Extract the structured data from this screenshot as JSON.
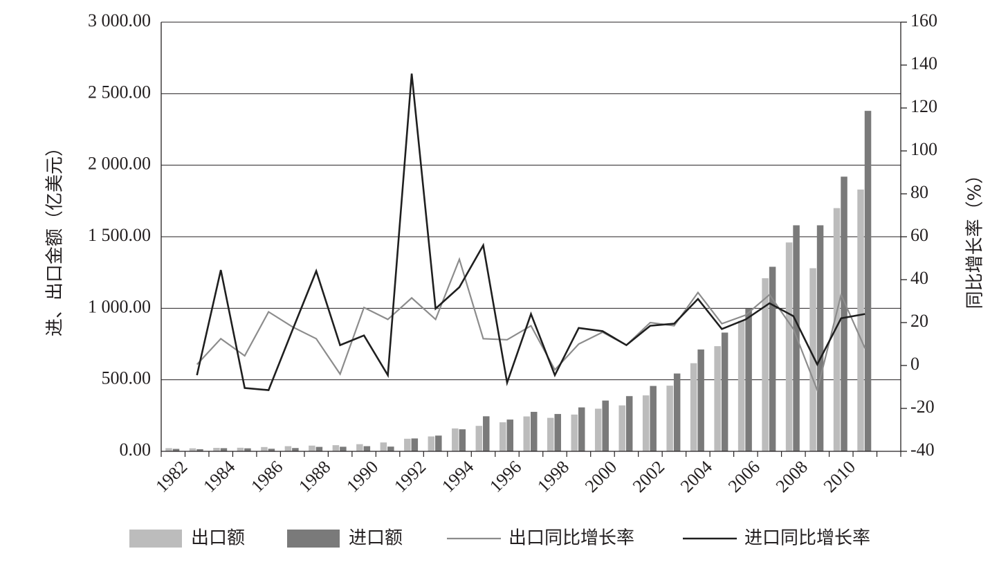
{
  "chart_data": {
    "type": "bar",
    "x": [
      1982,
      1983,
      1984,
      1985,
      1986,
      1987,
      1988,
      1989,
      1990,
      1991,
      1992,
      1993,
      1994,
      1995,
      1996,
      1997,
      1998,
      1999,
      2000,
      2001,
      2002,
      2003,
      2004,
      2005,
      2006,
      2007,
      2008,
      2009,
      2010,
      2011,
      2012
    ],
    "x_tick_labels": [
      "1982",
      "1984",
      "1986",
      "1988",
      "1990",
      "1992",
      "1994",
      "1996",
      "1998",
      "2000",
      "2002",
      "2004",
      "2006",
      "2008",
      "2010"
    ],
    "series": [
      {
        "name": "出口额",
        "kind": "bar",
        "axis": "left",
        "color": "#bcbcbc",
        "values": [
          22,
          21,
          24,
          25,
          30,
          36,
          40,
          43,
          50,
          62,
          88,
          104,
          160,
          178,
          203,
          244,
          234,
          257,
          298,
          321,
          391,
          459,
          616,
          735,
          912,
          1210,
          1460,
          1280,
          1700,
          1830,
          null
        ]
      },
      {
        "name": "进口额",
        "kind": "bar",
        "axis": "left",
        "color": "#7a7a7a",
        "values": [
          17,
          15,
          22,
          21,
          18,
          23,
          31,
          32,
          36,
          33,
          90,
          110,
          154,
          245,
          222,
          276,
          261,
          307,
          355,
          386,
          457,
          544,
          712,
          830,
          998,
          1290,
          1580,
          1580,
          1920,
          2380,
          null
        ]
      },
      {
        "name": "出口同比增长率",
        "kind": "line",
        "axis": "right",
        "color": "#8c8c8c",
        "values": [
          null,
          0.5,
          12.5,
          4.5,
          25,
          18,
          12.5,
          -4,
          27,
          21.5,
          31.5,
          21.5,
          49.5,
          12.5,
          12,
          18.5,
          -2,
          10,
          15.5,
          9.5,
          20,
          18.5,
          34,
          19.5,
          23.5,
          33,
          17,
          -11.5,
          33,
          8,
          null
        ]
      },
      {
        "name": "进口同比增长率",
        "kind": "line",
        "axis": "right",
        "color": "#1f1f1f",
        "values": [
          null,
          -4.5,
          44.5,
          -10.5,
          -11.5,
          16.5,
          44,
          9.5,
          14,
          -4.5,
          136,
          26.5,
          36.5,
          56,
          -8,
          24,
          -4.5,
          17.5,
          16,
          9.5,
          18.5,
          19.5,
          31,
          17,
          21.5,
          29,
          23,
          0.5,
          22,
          24,
          null
        ]
      }
    ],
    "ylabel": "进、出口金额（亿美元）",
    "y2label": "同比增长率（%）",
    "ylim": [
      0,
      3000
    ],
    "y2lim": [
      -40,
      160
    ],
    "yticks": [
      "0.00",
      "500.00",
      "1 000.00",
      "1 500.00",
      "2 000.00",
      "2 500.00",
      "3 000.00"
    ],
    "y2ticks": [
      "-40",
      "-20",
      "0",
      "20",
      "40",
      "60",
      "80",
      "100",
      "120",
      "140",
      "160"
    ],
    "grid": true,
    "legend_position": "bottom"
  }
}
